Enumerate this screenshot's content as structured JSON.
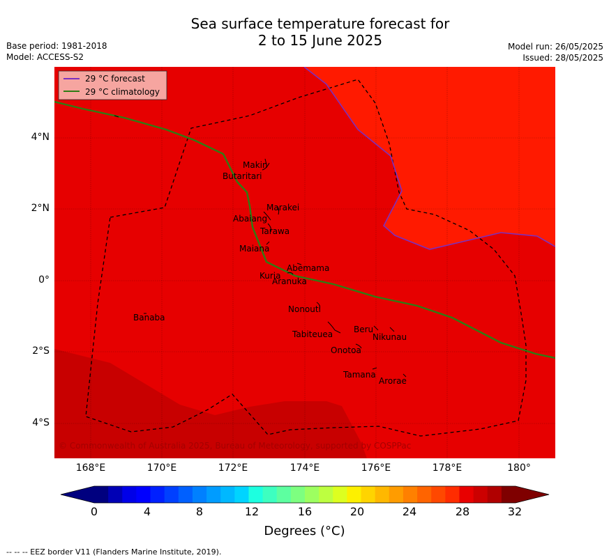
{
  "title_line1": "Sea surface temperature forecast for",
  "title_line2": "2 to 15 June 2025",
  "base_period": "Base period: 1981-2018",
  "model": "Model: ACCESS-S2",
  "model_run": "Model run: 26/05/2025",
  "issued": "Issued: 28/05/2025",
  "legend": {
    "forecast": "29 °C  forecast",
    "climatology": "29 °C  climatology",
    "forecast_color": "#7b2fbf",
    "climatology_color": "#2e7d14"
  },
  "lat_ticks": [
    "4°N",
    "2°N",
    "0°",
    "2°S",
    "4°S"
  ],
  "lon_ticks": [
    "168°E",
    "170°E",
    "172°E",
    "174°E",
    "176°E",
    "178°E",
    "180°"
  ],
  "places": {
    "makin": "Makin",
    "butaritari": "Butaritari",
    "marakei": "Marakei",
    "abaiang": "Abaiang",
    "tarawa": "Tarawa",
    "maiana": "Maiana",
    "abemama": "Abemama",
    "kuria": "Kuria",
    "aranuka": "Aranuka",
    "nonouti": "Nonouti",
    "banaba": "Banaba",
    "tabiteuea": "Tabiteuea",
    "beru": "Beru",
    "nikunau": "Nikunau",
    "onotoa": "Onotoa",
    "tamana": "Tamana",
    "arorae": "Arorae"
  },
  "copyright": "© Commonwealth of Australia 2025, Bureau of Meteorology, supported by COSPPac",
  "colorbar": {
    "ticks": [
      "0",
      "4",
      "8",
      "12",
      "16",
      "20",
      "24",
      "28",
      "32"
    ],
    "label": "Degrees (°C)",
    "colors": [
      "#00007f",
      "#0000b5",
      "#0000e8",
      "#0000ff",
      "#0020ff",
      "#0040ff",
      "#0060ff",
      "#0080ff",
      "#009cff",
      "#00b8ff",
      "#00d4ff",
      "#1dffe0",
      "#3dffc0",
      "#5dffa0",
      "#7dff80",
      "#9dff60",
      "#bdff40",
      "#ddff20",
      "#fdf000",
      "#ffd400",
      "#ffb800",
      "#ff9c00",
      "#ff8000",
      "#ff6400",
      "#ff4800",
      "#ff2c00",
      "#e80000",
      "#cc0000",
      "#b00000",
      "#7f0000"
    ],
    "under_color": "#00007f",
    "over_color": "#7f0000"
  },
  "map_colors": {
    "warm": "#ff1a00",
    "main": "#e60000",
    "cool": "#c80000",
    "coolest": "#b50000"
  },
  "footer": "--  --  -- EEZ border V11 (Flanders Marine Institute, 2019)."
}
